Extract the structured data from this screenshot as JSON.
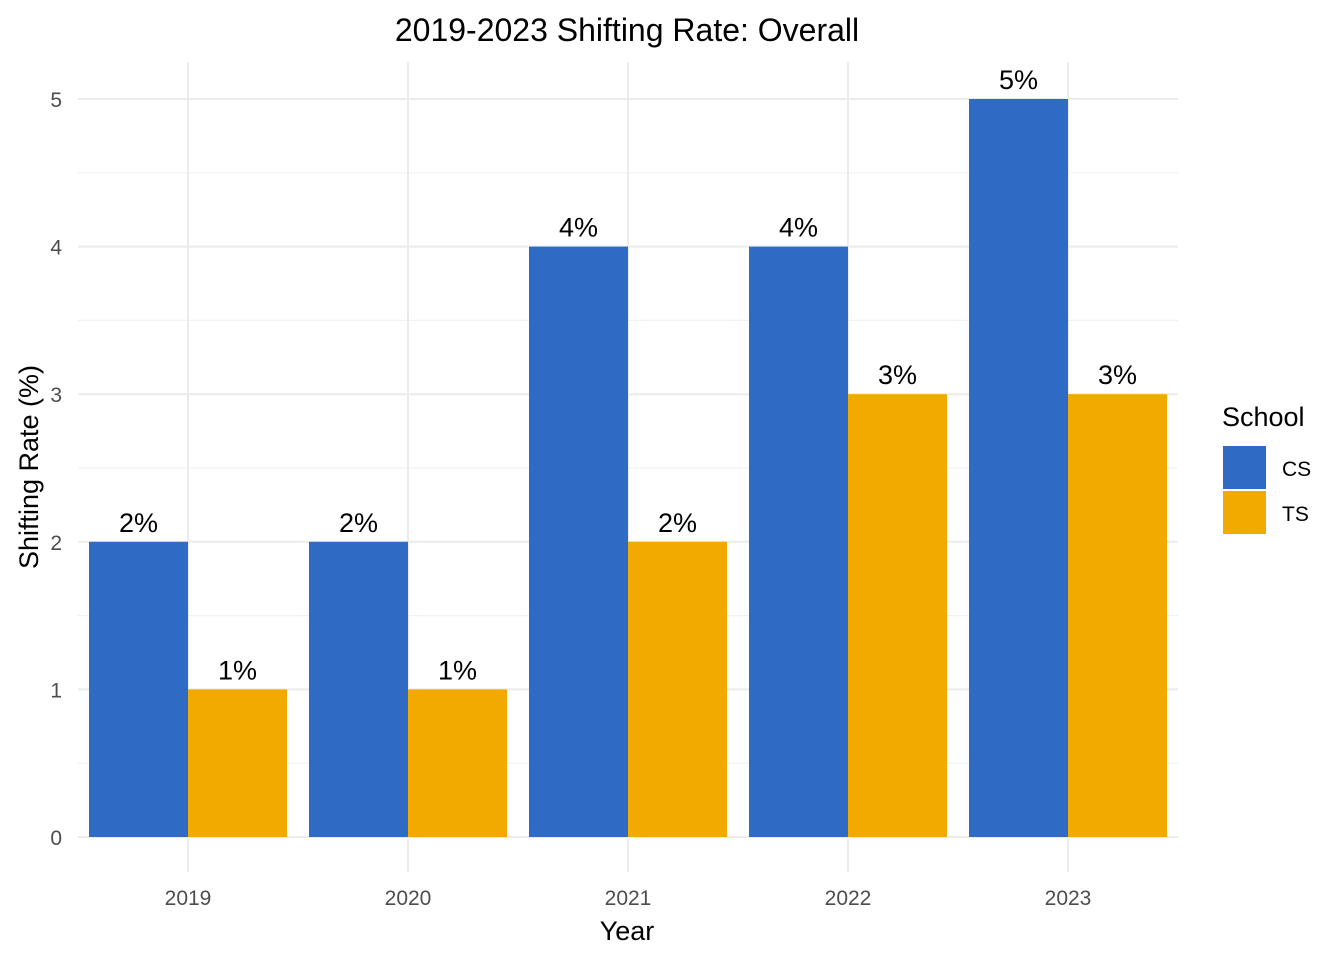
{
  "chart_data": {
    "type": "bar",
    "title": "2019-2023 Shifting Rate: Overall",
    "xlabel": "Year",
    "ylabel": "Shifting Rate (%)",
    "categories": [
      "2019",
      "2020",
      "2021",
      "2022",
      "2023"
    ],
    "series": [
      {
        "name": "CS",
        "values": [
          2,
          2,
          4,
          4,
          5
        ],
        "labels": [
          "2%",
          "2%",
          "4%",
          "4%",
          "5%"
        ],
        "color": "#2f6ac5"
      },
      {
        "name": "TS",
        "values": [
          1,
          1,
          2,
          3,
          3
        ],
        "labels": [
          "1%",
          "1%",
          "2%",
          "3%",
          "3%"
        ],
        "color": "#f2a900"
      }
    ],
    "ylim": [
      0,
      5
    ],
    "yticks": [
      0,
      1,
      2,
      3,
      4,
      5
    ],
    "grid": true,
    "legend": {
      "title": "School",
      "position": "right"
    }
  }
}
